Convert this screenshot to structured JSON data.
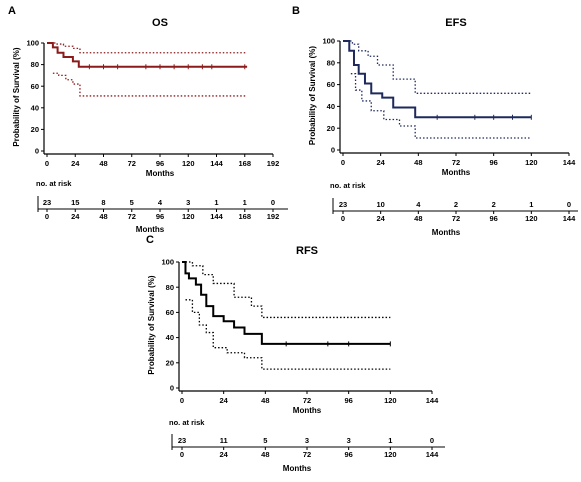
{
  "chart_data": [
    {
      "panel": "A",
      "type": "line",
      "title": "OS",
      "xlabel": "Months",
      "ylabel": "Probability of Survival (%)",
      "xlim": [
        0,
        192
      ],
      "ylim": [
        0,
        100
      ],
      "xticks": [
        0,
        24,
        48,
        72,
        96,
        120,
        144,
        168,
        192
      ],
      "yticks": [
        0,
        20,
        40,
        60,
        80,
        100
      ],
      "color": "#8b1a1a",
      "survival": {
        "x": [
          0,
          5,
          9,
          14,
          22,
          27,
          30,
          170
        ],
        "y": [
          100,
          96,
          91,
          87,
          83,
          78,
          78,
          78
        ]
      },
      "upper": {
        "x": [
          0,
          8,
          14,
          22,
          28,
          170
        ],
        "y": [
          100,
          99,
          97,
          95,
          91,
          91
        ]
      },
      "lower": {
        "x": [
          5,
          10,
          16,
          22,
          28,
          170
        ],
        "y": [
          72,
          70,
          66,
          62,
          51,
          51
        ]
      },
      "censors": {
        "x": [
          36,
          48,
          60,
          84,
          96,
          108,
          120,
          132,
          140,
          168
        ],
        "y": [
          78,
          78,
          78,
          78,
          78,
          78,
          78,
          78,
          78,
          78
        ]
      },
      "risk": {
        "header": "no. at risk",
        "counts": [
          "23",
          "15",
          "8",
          "5",
          "4",
          "3",
          "1",
          "1",
          "0"
        ],
        "months": [
          "0",
          "24",
          "48",
          "72",
          "96",
          "120",
          "144",
          "168",
          "192"
        ],
        "label": "Months"
      }
    },
    {
      "panel": "B",
      "type": "line",
      "title": "EFS",
      "xlabel": "Months",
      "ylabel": "Probability of Survival (%)",
      "xlim": [
        0,
        144
      ],
      "ylim": [
        0,
        100
      ],
      "xticks": [
        0,
        24,
        48,
        72,
        96,
        120,
        144
      ],
      "yticks": [
        0,
        20,
        40,
        60,
        80,
        100
      ],
      "color": "#1f2a5c",
      "survival": {
        "x": [
          0,
          4,
          7,
          10,
          14,
          18,
          25,
          32,
          46,
          120
        ],
        "y": [
          100,
          91,
          78,
          70,
          61,
          52,
          48,
          39,
          30,
          30
        ]
      },
      "upper": {
        "x": [
          0,
          6,
          10,
          16,
          22,
          32,
          46,
          120
        ],
        "y": [
          100,
          97,
          91,
          86,
          78,
          65,
          52,
          52
        ]
      },
      "lower": {
        "x": [
          5,
          8,
          12,
          18,
          26,
          36,
          46,
          120
        ],
        "y": [
          70,
          55,
          45,
          36,
          28,
          22,
          11,
          11
        ]
      },
      "censors": {
        "x": [
          60,
          84,
          96,
          108,
          120
        ],
        "y": [
          30,
          30,
          30,
          30,
          30
        ]
      },
      "risk": {
        "header": "no. at risk",
        "counts": [
          "23",
          "10",
          "4",
          "2",
          "2",
          "1",
          "0"
        ],
        "months": [
          "0",
          "24",
          "48",
          "72",
          "96",
          "120",
          "144"
        ],
        "label": "Months"
      }
    },
    {
      "panel": "C",
      "type": "line",
      "title": "RFS",
      "xlabel": "Months",
      "ylabel": "Probability of Survival (%)",
      "xlim": [
        0,
        144
      ],
      "ylim": [
        0,
        100
      ],
      "xticks": [
        0,
        24,
        48,
        72,
        96,
        120,
        144
      ],
      "yticks": [
        0,
        20,
        40,
        60,
        80,
        100
      ],
      "color": "#000000",
      "survival": {
        "x": [
          0,
          2,
          4,
          8,
          11,
          14,
          18,
          24,
          30,
          36,
          46,
          120
        ],
        "y": [
          100,
          91,
          87,
          82,
          74,
          65,
          57,
          53,
          48,
          43,
          35,
          35
        ]
      },
      "upper": {
        "x": [
          0,
          6,
          12,
          18,
          30,
          40,
          46,
          120
        ],
        "y": [
          100,
          97,
          90,
          83,
          72,
          65,
          56,
          56
        ]
      },
      "lower": {
        "x": [
          2,
          6,
          10,
          14,
          18,
          26,
          36,
          46,
          120
        ],
        "y": [
          70,
          60,
          50,
          44,
          32,
          28,
          24,
          15,
          15
        ]
      },
      "censors": {
        "x": [
          60,
          84,
          96,
          120
        ],
        "y": [
          35,
          35,
          35,
          35
        ]
      },
      "risk": {
        "header": "no. at risk",
        "counts": [
          "23",
          "11",
          "5",
          "3",
          "3",
          "1",
          "0"
        ],
        "months": [
          "0",
          "24",
          "48",
          "72",
          "96",
          "120",
          "144"
        ],
        "label": "Months"
      }
    }
  ]
}
